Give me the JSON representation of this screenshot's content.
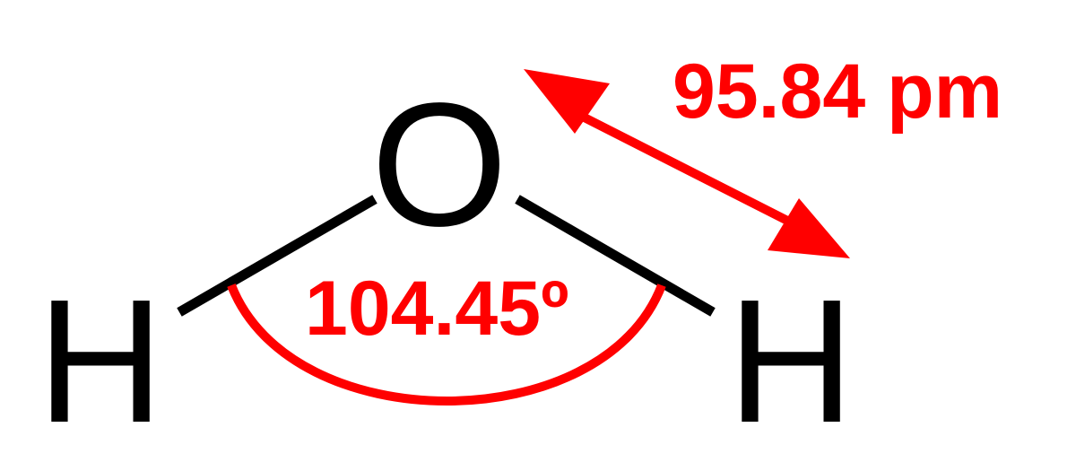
{
  "molecule": {
    "atoms": [
      {
        "id": "oxygen",
        "symbol": "O"
      },
      {
        "id": "hydrogen-left",
        "symbol": "H"
      },
      {
        "id": "hydrogen-right",
        "symbol": "H"
      }
    ]
  },
  "annotations": {
    "bond_angle": "104.45º",
    "bond_length": "95.84 pm"
  },
  "colors": {
    "atoms": "#000000",
    "bonds": "#000000",
    "measurements": "#ff0000"
  }
}
